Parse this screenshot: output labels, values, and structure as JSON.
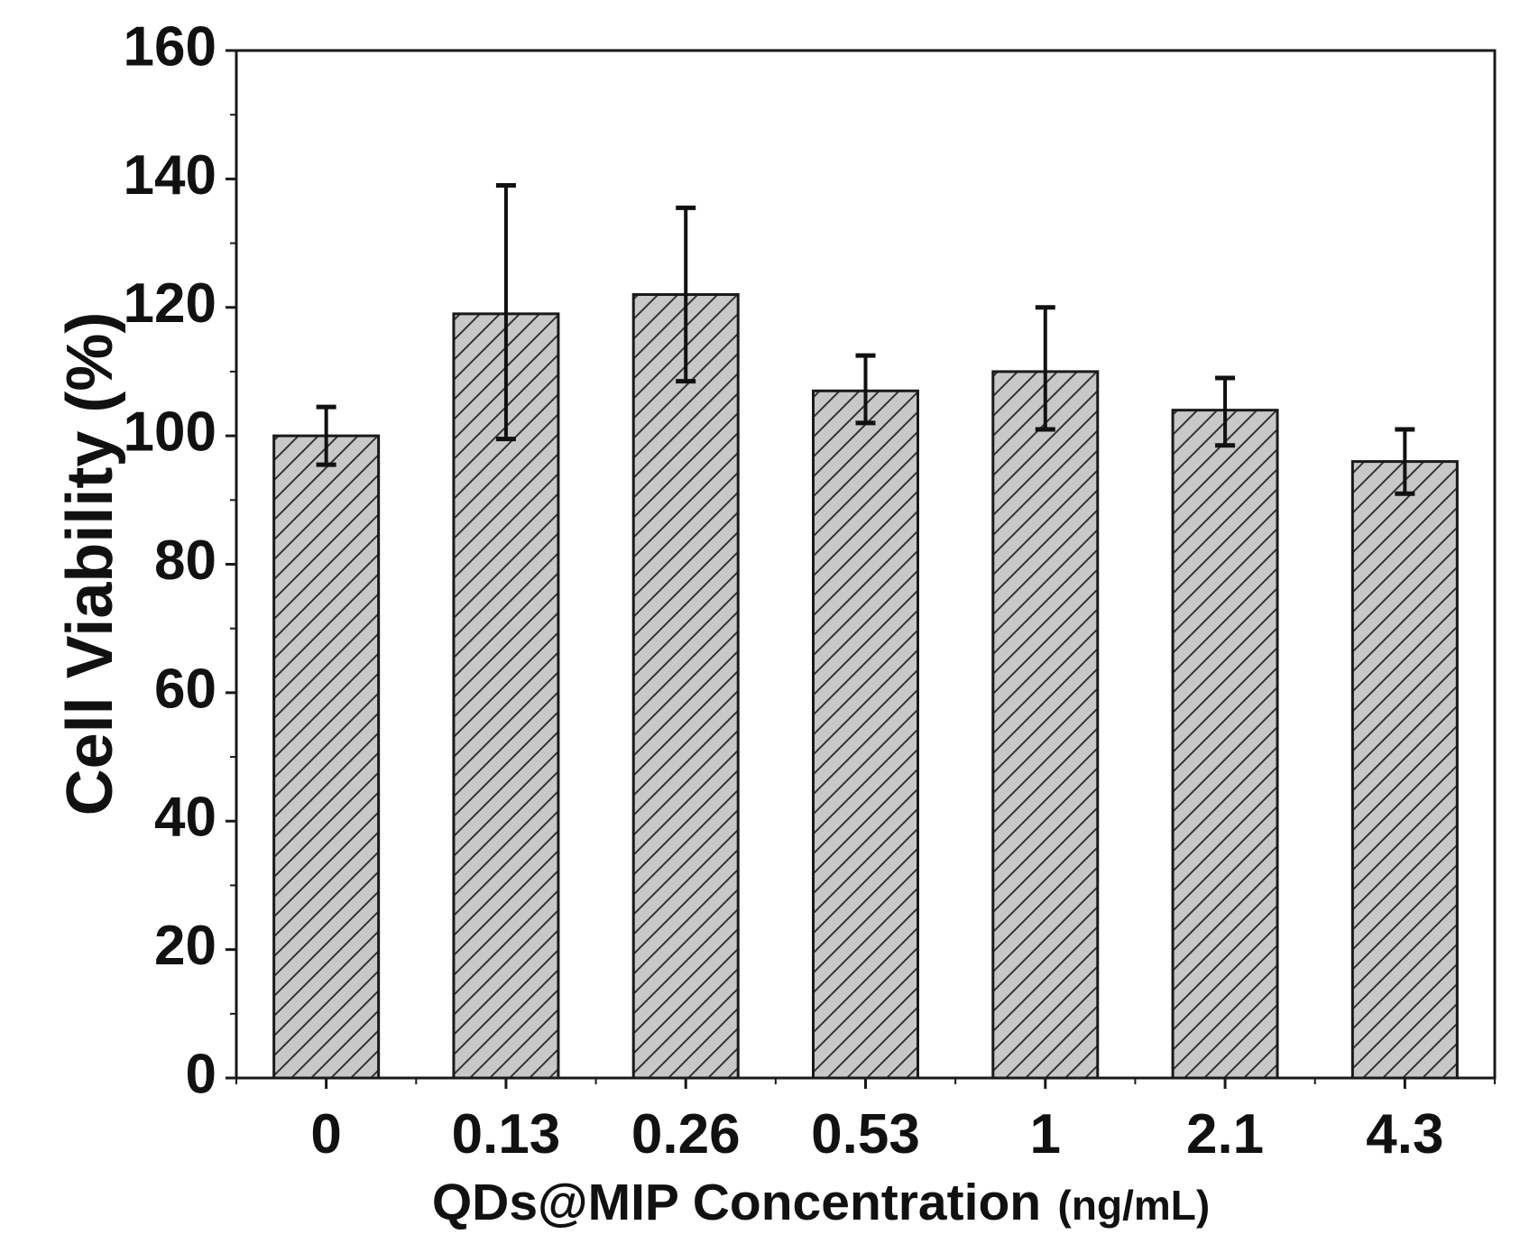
{
  "chart_data": {
    "type": "bar",
    "title": "",
    "xlabel_main": "QDs@MIP Concentration",
    "xlabel_unit": "(ng/mL)",
    "ylabel": "Cell Viability (%)",
    "categories": [
      "0",
      "0.13",
      "0.26",
      "0.53",
      "1",
      "2.1",
      "4.3"
    ],
    "values": [
      100,
      119,
      122,
      107,
      110,
      104,
      96
    ],
    "error_low": [
      95.5,
      99.5,
      108.5,
      102,
      101,
      98.5,
      91
    ],
    "error_high": [
      104.5,
      139,
      135.5,
      112.5,
      120,
      109,
      101
    ],
    "ylim": [
      0,
      160
    ],
    "yticks": [
      0,
      20,
      40,
      60,
      80,
      100,
      120,
      140,
      160
    ],
    "bar_fill": "#c8c8c8",
    "bar_pattern": "diagonal-hatch",
    "grid": false
  }
}
